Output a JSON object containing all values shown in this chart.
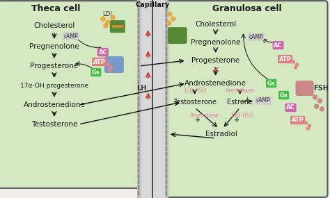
{
  "bg_color": "#f0f0f0",
  "theca_bg": "#d4e8c2",
  "granulosa_bg": "#d4e8c2",
  "capillary_bg": "#e8e8e8",
  "title_theca": "Theca cell",
  "title_granulosa": "Granulosa cell",
  "title_capillary": "Capillary",
  "ac_color": "#cc66aa",
  "atp_color": "#e08080",
  "g_color": "#44bb44",
  "camp_color": "#cccccc",
  "enzyme_color": "#e080a0",
  "arrow_color": "#222222",
  "lh_color": "#555555",
  "fsh_color": "#555555",
  "receptor_color": "#7799cc",
  "fsh_receptor_color": "#cc8888",
  "ldl_color": "#e8aa44",
  "up_arrow_color": "#cc4444",
  "text_dark": "#1a1a1a",
  "cross_color": "#cc4444"
}
